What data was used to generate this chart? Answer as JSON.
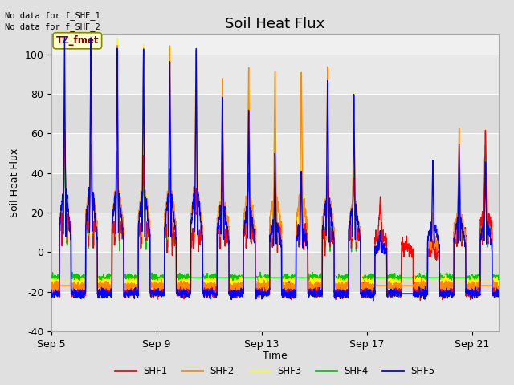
{
  "title": "Soil Heat Flux",
  "ylabel": "Soil Heat Flux",
  "xlabel": "Time",
  "top_left_text1": "No data for f_SHF_1",
  "top_left_text2": "No data for f_SHF_2",
  "tz_label": "TZ_fmet",
  "ylim": [
    -40,
    110
  ],
  "yticks": [
    -40,
    -20,
    0,
    20,
    40,
    60,
    80,
    100
  ],
  "series_colors": {
    "SHF1": "#ff0000",
    "SHF2": "#ff8800",
    "SHF3": "#ffff00",
    "SHF4": "#00cc00",
    "SHF5": "#0000ff"
  },
  "legend_entries": [
    "SHF1",
    "SHF2",
    "SHF3",
    "SHF4",
    "SHF5"
  ],
  "xtick_labels": [
    "Sep 5",
    "Sep 9",
    "Sep 13",
    "Sep 17",
    "Sep 21"
  ],
  "xtick_positions": [
    0,
    4,
    8,
    12,
    16
  ],
  "xlim": [
    0,
    17
  ],
  "bg_color": "#e0e0e0",
  "plot_bg": "#f0f0f0",
  "band_colors": [
    "#e8e8e8",
    "#d8d8d8"
  ],
  "grid_color": "#ffffff",
  "line_width": 1.0,
  "title_fontsize": 13,
  "axis_fontsize": 9,
  "n_days": 17,
  "n_points_per_day": 144,
  "shf1_peaks": [
    57,
    49,
    46,
    42,
    39,
    28,
    38,
    37,
    37,
    36,
    35,
    35,
    25,
    5,
    5,
    41,
    55
  ],
  "shf2_peaks": [
    0,
    96,
    95,
    95,
    95,
    95,
    82,
    85,
    85,
    85,
    86,
    74,
    0,
    0,
    17,
    57,
    0
  ],
  "shf3_peaks": [
    0,
    96,
    95,
    95,
    95,
    95,
    82,
    74,
    85,
    85,
    85,
    74,
    0,
    0,
    0,
    0,
    0
  ],
  "shf4_peaks": [
    42,
    42,
    40,
    35,
    34,
    0,
    0,
    0,
    0,
    0,
    40,
    38,
    0,
    0,
    0,
    0,
    48
  ],
  "shf5_peaks": [
    97,
    97,
    95,
    95,
    88,
    95,
    75,
    68,
    47,
    38,
    82,
    74,
    9,
    0,
    43,
    50,
    44
  ],
  "shf1_night": -20,
  "shf2_night": -17,
  "shf3_night": -15,
  "shf4_night": -13,
  "shf5_night": -21
}
